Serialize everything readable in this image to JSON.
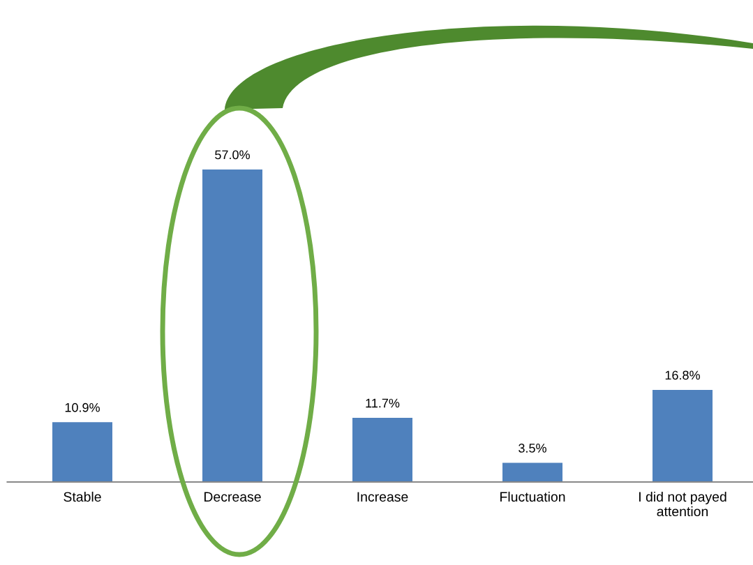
{
  "chart_data": {
    "type": "bar",
    "categories": [
      "Stable",
      "Decrease",
      "Increase",
      "Fluctuation",
      "I did not payed\nattention"
    ],
    "values": [
      10.9,
      57.0,
      11.7,
      3.5,
      16.8
    ],
    "value_labels": [
      "10.9%",
      "57.0%",
      "11.7%",
      "3.5%",
      "16.8%"
    ],
    "color": "#4f81bd",
    "tick_labels": "x",
    "grid": false,
    "legend": false
  }
}
